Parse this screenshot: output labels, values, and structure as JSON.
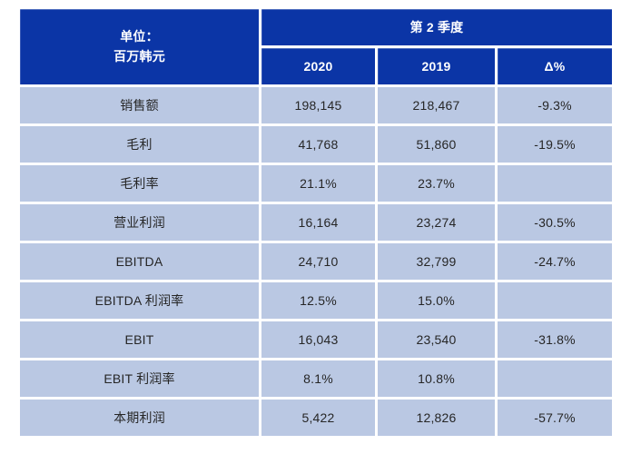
{
  "table": {
    "unit_header": {
      "line1": "单位：",
      "line2": "百万韩元"
    },
    "quarter_header": "第 2 季度",
    "columns": {
      "col_2020": "2020",
      "col_2019": "2019",
      "col_delta": "Δ%"
    },
    "rows": [
      {
        "label": "销售额",
        "v2020": "198,145",
        "v2019": "218,467",
        "delta": "-9.3%"
      },
      {
        "label": "毛利",
        "v2020": "41,768",
        "v2019": "51,860",
        "delta": "-19.5%"
      },
      {
        "label": "毛利率",
        "v2020": "21.1%",
        "v2019": "23.7%",
        "delta": ""
      },
      {
        "label": "营业利润",
        "v2020": "16,164",
        "v2019": "23,274",
        "delta": "-30.5%"
      },
      {
        "label": "EBITDA",
        "v2020": "24,710",
        "v2019": "32,799",
        "delta": "-24.7%"
      },
      {
        "label": "EBITDA 利润率",
        "v2020": "12.5%",
        "v2019": "15.0%",
        "delta": ""
      },
      {
        "label": "EBIT",
        "v2020": "16,043",
        "v2019": "23,540",
        "delta": "-31.8%"
      },
      {
        "label": "EBIT 利润率",
        "v2020": "8.1%",
        "v2019": "10.8%",
        "delta": ""
      },
      {
        "label": "本期利润",
        "v2020": "5,422",
        "v2019": "12,826",
        "delta": "-57.7%"
      }
    ]
  },
  "colors": {
    "header_bg": "#0b35a6",
    "row_bg": "#bac8e3",
    "header_text": "#ffffff",
    "body_text": "#262626",
    "separator": "#ffffff"
  },
  "chart_data": {
    "type": "table",
    "title": "第 2 季度",
    "unit": "单位：百万韩元",
    "columns": [
      "2020",
      "2019",
      "Δ%"
    ],
    "rows": [
      {
        "label": "销售额",
        "y2020": 198145,
        "y2019": 218467,
        "delta_pct": -9.3
      },
      {
        "label": "毛利",
        "y2020": 41768,
        "y2019": 51860,
        "delta_pct": -19.5
      },
      {
        "label": "毛利率",
        "y2020": "21.1%",
        "y2019": "23.7%",
        "delta_pct": null
      },
      {
        "label": "营业利润",
        "y2020": 16164,
        "y2019": 23274,
        "delta_pct": -30.5
      },
      {
        "label": "EBITDA",
        "y2020": 24710,
        "y2019": 32799,
        "delta_pct": -24.7
      },
      {
        "label": "EBITDA 利润率",
        "y2020": "12.5%",
        "y2019": "15.0%",
        "delta_pct": null
      },
      {
        "label": "EBIT",
        "y2020": 16043,
        "y2019": 23540,
        "delta_pct": -31.8
      },
      {
        "label": "EBIT 利润率",
        "y2020": "8.1%",
        "y2019": "10.8%",
        "delta_pct": null
      },
      {
        "label": "本期利润",
        "y2020": 5422,
        "y2019": 12826,
        "delta_pct": -57.7
      }
    ]
  }
}
